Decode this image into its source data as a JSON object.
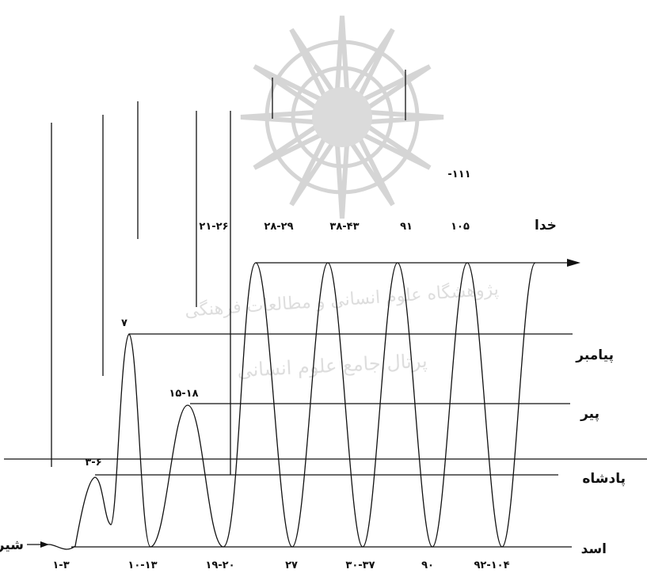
{
  "levels": {
    "god": "خدا",
    "prophet": "پیامبر",
    "pir": "پیر",
    "king": "پادشاه",
    "asad": "اسد",
    "lion": "شیر"
  },
  "top_labels": [
    "-۱۱۱",
    "۲۱-۲۶",
    "۲۸-۲۹",
    "۳۸-۴۳",
    "۹۱",
    "۱۰۵"
  ],
  "peak_labels": [
    "۳-۶",
    "۷",
    "۱۵-۱۸"
  ],
  "bottom_labels": [
    "۱-۳",
    "۱۰-۱۳",
    "۱۹-۲۰",
    "۲۷",
    "۳۰-۳۷",
    "۹۰",
    "۹۲-۱۰۴"
  ],
  "watermark": {
    "line1": "پژوهشگاه علوم انسانی و مطالعات فرهنگی",
    "line2": "پرتال جامع علوم انسانی",
    "color": "#c8c8c8"
  },
  "colors": {
    "ink": "#111111",
    "background": "#ffffff"
  }
}
